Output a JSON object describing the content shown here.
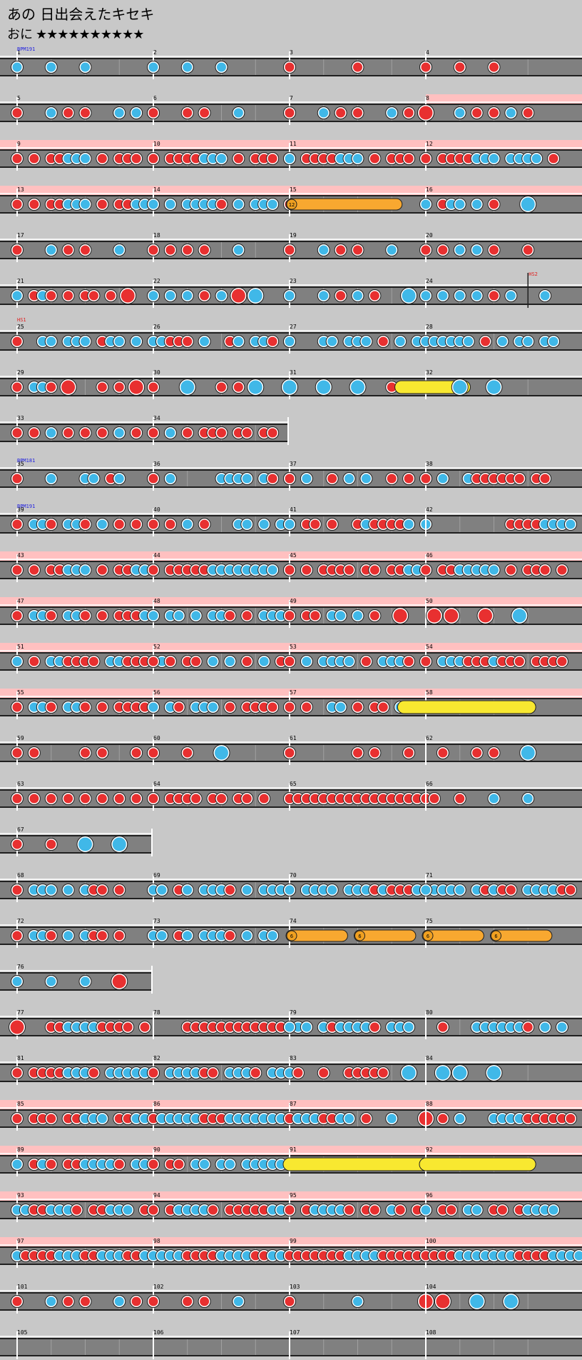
{
  "song": {
    "title": "あの 日出会えたキセキ",
    "course_label": "おに",
    "stars": "★★★★★★★★★★",
    "star_count": 10
  },
  "colors": {
    "background": "#c8c8c8",
    "lane": "#808080",
    "gogo_band": "#ffc0c0",
    "don": "#e83030",
    "ka": "#40b8e8",
    "balloon": "#f8a830",
    "drumroll": "#f8e830",
    "bpm_text": "#2020e0",
    "hs_text": "#e02020"
  },
  "event_labels": {
    "bpm_first": "BPM191",
    "bpm_35": "BPM181",
    "bpm_39": "BPM191",
    "hs_24": "HS2",
    "hs_25": "HS1"
  },
  "balloon_labels": {
    "m15": "12",
    "m74": "6",
    "m74b": "6",
    "m75": "6",
    "m75b": "6"
  },
  "measures": [
    {
      "n": "1",
      "row": 0,
      "col": 0,
      "notes": "k...k...k.......",
      "bpm": "bpm_first"
    },
    {
      "n": "2",
      "row": 0,
      "col": 1,
      "notes": "k...k...k......."
    },
    {
      "n": "3",
      "row": 0,
      "col": 2,
      "notes": "d.......d.......d"
    },
    {
      "n": "4",
      "row": 0,
      "col": 3,
      "notes": "d...d...d......."
    },
    {
      "n": "5",
      "row": 1,
      "col": 0,
      "notes": "d...k.d.d...k.k.d"
    },
    {
      "n": "6",
      "row": 1,
      "col": 1,
      "notes": "d...d.d...k....."
    },
    {
      "n": "7",
      "row": 1,
      "col": 2,
      "notes": "d...k.d.d...k.d.K"
    },
    {
      "n": "8",
      "row": 1,
      "col": 3,
      "notes": "D...k.d.d.k.d...",
      "gogo": true
    },
    {
      "n": "9",
      "row": 2,
      "col": 0,
      "notes": "d.d.ddkkk.d.ddd.d",
      "gogo": true
    },
    {
      "n": "10",
      "row": 2,
      "col": 1,
      "notes": "d.ddddkkk.d.ddd.d",
      "gogo": true
    },
    {
      "n": "11",
      "row": 2,
      "col": 2,
      "notes": "k.ddddkkk.d.ddd.d",
      "gogo": true
    },
    {
      "n": "12",
      "row": 2,
      "col": 3,
      "notes": "d.ddddkkk.kkkk.d.",
      "gogo": true
    },
    {
      "n": "13",
      "row": 3,
      "col": 0,
      "notes": "d.d.ddkkk.d.ddkkd",
      "gogo": true
    },
    {
      "n": "14",
      "row": 3,
      "col": 1,
      "notes": "k.k.kkkkd.k.kkk.d",
      "gogo": true
    },
    {
      "n": "15",
      "row": 3,
      "col": 2,
      "notes": "",
      "gogo": true,
      "balloon": {
        "from": 0,
        "to": 0.8,
        "label": "m15",
        "type": "balloon"
      }
    },
    {
      "n": "16",
      "row": 3,
      "col": 3,
      "notes": "k.dkk.k.d...K...",
      "gogo": true
    },
    {
      "n": "17",
      "row": 4,
      "col": 0,
      "notes": "d...k.d.d...k..."
    },
    {
      "n": "18",
      "row": 4,
      "col": 1,
      "notes": "d.d.d.d...k....."
    },
    {
      "n": "19",
      "row": 4,
      "col": 2,
      "notes": "d...k.d.d...k..."
    },
    {
      "n": "20",
      "row": 4,
      "col": 3,
      "notes": "d.d.k.k.d...d..."
    },
    {
      "n": "21",
      "row": 5,
      "col": 0,
      "notes": "k.dkd.d.dd.d.D.."
    },
    {
      "n": "22",
      "row": 5,
      "col": 1,
      "notes": "k.k.k.d.k.D.K..."
    },
    {
      "n": "23",
      "row": 5,
      "col": 2,
      "notes": "k...k.d.k.d...K."
    },
    {
      "n": "24",
      "row": 5,
      "col": 3,
      "notes": "k.k.k.k.d.k...k.",
      "hs": "hs_24"
    },
    {
      "n": "25",
      "row": 6,
      "col": 0,
      "notes": "d..kk.kkk.dkk.k.",
      "hs": "hs_25"
    },
    {
      "n": "26",
      "row": 6,
      "col": 1,
      "notes": "kkddd.k..dk.kkd.d"
    },
    {
      "n": "27",
      "row": 6,
      "col": 2,
      "notes": "k...kk.kkk.d.k.k"
    },
    {
      "n": "28",
      "row": 6,
      "col": 3,
      "notes": "kkkkkk.d.k.kk.kk"
    },
    {
      "n": "29",
      "row": 7,
      "col": 0,
      "notes": "d.kkd.D...d.d.D."
    },
    {
      "n": "30",
      "row": 7,
      "col": 1,
      "notes": "d...K...d.d.K..."
    },
    {
      "n": "31",
      "row": 7,
      "col": 2,
      "notes": "K...K...K...d.d."
    },
    {
      "n": "32",
      "row": 7,
      "col": 3,
      "notes": "....K...K.......",
      "roll": {
        "from": -0.18,
        "to": 0.28
      }
    },
    {
      "n": "33",
      "row": 8,
      "col": 0,
      "notes": "d.d.k.d.d.d.k.d."
    },
    {
      "n": "34",
      "row": 8,
      "col": 1,
      "notes": "d.k.d.ddd.dd.dd."
    },
    {
      "n": "35",
      "row": 9,
      "col": 0,
      "notes": "d...k...kk.dk...d",
      "bpm": "bpm_35"
    },
    {
      "n": "36",
      "row": 9,
      "col": 1,
      "notes": "d.k.....kkkk.kd.k"
    },
    {
      "n": "37",
      "row": 9,
      "col": 2,
      "notes": "d.k..d.k.k..d.d.d"
    },
    {
      "n": "38",
      "row": 9,
      "col": 3,
      "notes": "d.k..kdddddd.dd.."
    },
    {
      "n": "39",
      "row": 10,
      "col": 0,
      "notes": "d.kkd.kkd.k.d.d.",
      "bpm": "bpm_39"
    },
    {
      "n": "40",
      "row": 10,
      "col": 1,
      "notes": "d.d.k.d...kk.k.kd"
    },
    {
      "n": "41",
      "row": 10,
      "col": 2,
      "notes": "k.dd.d..dkddddk.k"
    },
    {
      "n": "42",
      "row": 10,
      "col": 3,
      "notes": "..........ddddkkkk"
    },
    {
      "n": "43",
      "row": 11,
      "col": 0,
      "notes": "d.d.ddkkk.d.ddkkd",
      "gogo": true
    },
    {
      "n": "44",
      "row": 11,
      "col": 1,
      "notes": "d.dddddkkkkkkkk.d",
      "gogo": true
    },
    {
      "n": "45",
      "row": 11,
      "col": 2,
      "notes": "d.d.dddd.dd.ddkkk",
      "gogo": true
    },
    {
      "n": "46",
      "row": 11,
      "col": 3,
      "notes": "d.ddkkkkk.d.ddd.d",
      "gogo": true
    },
    {
      "n": "47",
      "row": 12,
      "col": 0,
      "notes": "d.kkd.kkd.d.dddkk",
      "gogo": true
    },
    {
      "n": "48",
      "row": 12,
      "col": 1,
      "notes": "k.kk.k.kkd.d.kkkk",
      "gogo": true
    },
    {
      "n": "49",
      "row": 12,
      "col": 2,
      "notes": "d.dd.kk.k.d..D..",
      "gogo": true
    },
    {
      "n": "50",
      "row": 12,
      "col": 3,
      "notes": ".D.D...D...K....",
      "gogo": true
    },
    {
      "n": "51",
      "row": 13,
      "col": 0,
      "notes": "k.d.kkdddd.kkddd.k",
      "gogo": true
    },
    {
      "n": "52",
      "row": 13,
      "col": 1,
      "notes": "d.d.dd.k.k.d.k.d",
      "gogo": true
    },
    {
      "n": "53",
      "row": 13,
      "col": 2,
      "notes": "d.k.kkkk.d.kkkd.d",
      "gogo": true
    },
    {
      "n": "54",
      "row": 13,
      "col": 3,
      "notes": "d.kkkdddkddd.dddd.",
      "gogo": true
    },
    {
      "n": "55",
      "row": 14,
      "col": 0,
      "notes": "d.kkd.kkd.d.dddd.",
      "gogo": true
    },
    {
      "n": "56",
      "row": 14,
      "col": 1,
      "notes": "k.kd.kkk.d.dddd.",
      "gogo": true
    },
    {
      "n": "57",
      "row": 14,
      "col": 2,
      "notes": "d.d..kk.d.dd.k...",
      "gogo": true,
      "roll_next": true
    },
    {
      "n": "58",
      "row": 14,
      "col": 3,
      "notes": "",
      "gogo": true,
      "roll": {
        "from": -0.16,
        "to": 0.76
      }
    },
    {
      "n": "59",
      "row": 15,
      "col": 0,
      "notes": "d.d.....d.d...d."
    },
    {
      "n": "60",
      "row": 15,
      "col": 1,
      "notes": "d...d...K......."
    },
    {
      "n": "61",
      "row": 15,
      "col": 2,
      "notes": "d.......d.d...d."
    },
    {
      "n": "62",
      "row": 15,
      "col": 3,
      "notes": "..d...d.d...K..."
    },
    {
      "n": "63",
      "row": 16,
      "col": 0,
      "notes": "d.d.d.d.d.d.d.d."
    },
    {
      "n": "64",
      "row": 16,
      "col": 1,
      "notes": "d.dddd.dd.dd.d.."
    },
    {
      "n": "65",
      "row": 16,
      "col": 2,
      "notes": "dddddddddddddddddd"
    },
    {
      "n": "66",
      "row": 16,
      "col": 3,
      "notes": "....d...k...k..."
    },
    {
      "n": "67",
      "row": 17,
      "col": 0,
      "notes": "d...d...K...K..."
    },
    {
      "n": "68",
      "row": 18,
      "col": 0,
      "notes": "d.kkk.k.kdd.d..."
    },
    {
      "n": "69",
      "row": 18,
      "col": 1,
      "notes": "kk.dk.kkkd.k.kkkd"
    },
    {
      "n": "70",
      "row": 18,
      "col": 2,
      "notes": "k.kkkk.kkkdkdddkkkk"
    },
    {
      "n": "71",
      "row": 18,
      "col": 3,
      "notes": "k.kkk.kdkdd.kkkkdd"
    },
    {
      "n": "72",
      "row": 19,
      "col": 0,
      "notes": "d.kkd.k.kdd.d..."
    },
    {
      "n": "73",
      "row": 19,
      "col": 1,
      "notes": "kk.dk.kkkd.k.kk"
    },
    {
      "n": "74",
      "row": 19,
      "col": 2,
      "notes": "",
      "balloons": [
        {
          "from": 0,
          "to": 0.4,
          "label": "m74"
        },
        {
          "from": 0.5,
          "to": 0.9,
          "label": "m74b"
        }
      ]
    },
    {
      "n": "75",
      "row": 19,
      "col": 3,
      "notes": "",
      "balloons": [
        {
          "from": 0,
          "to": 0.4,
          "label": "m75"
        },
        {
          "from": 0.5,
          "to": 0.9,
          "label": "m75b"
        }
      ]
    },
    {
      "n": "76",
      "row": 20,
      "col": 0,
      "notes": "k...k...k...D..."
    },
    {
      "n": "77",
      "row": 21,
      "col": 0,
      "notes": "D...ddkkkkdddd.d"
    },
    {
      "n": "78",
      "row": 21,
      "col": 1,
      "notes": "....dddddddddddddkk"
    },
    {
      "n": "79",
      "row": 21,
      "col": 2,
      "notes": "k...kdkkkkd.kkk...d"
    },
    {
      "n": "80",
      "row": 21,
      "col": 3,
      "notes": "..d...kkkkkkd.k.k"
    },
    {
      "n": "81",
      "row": 22,
      "col": 0,
      "notes": "d.ddddkkkd.kkkkkk"
    },
    {
      "n": "82",
      "row": 22,
      "col": 1,
      "notes": "d.kkkkdd.kkkd.kk"
    },
    {
      "n": "83",
      "row": 22,
      "col": 2,
      "notes": "kd..d..ddddd..K."
    },
    {
      "n": "84",
      "row": 22,
      "col": 3,
      "notes": "..K.K...K......."
    },
    {
      "n": "85",
      "row": 23,
      "col": 0,
      "notes": "d.ddd.ddkkk.ddkkd",
      "gogo": true
    },
    {
      "n": "86",
      "row": 23,
      "col": 1,
      "notes": "dkkkkkdddkkkkkkkd",
      "gogo": true
    },
    {
      "n": "87",
      "row": 23,
      "col": 2,
      "notes": "dkkkddkk.d..k...D",
      "gogo": true
    },
    {
      "n": "88",
      "row": 23,
      "col": 3,
      "notes": "..d.k...kkkkdddddd",
      "gogo": true
    },
    {
      "n": "89",
      "row": 24,
      "col": 0,
      "notes": "k.dkd.ddkkkkd.kkd",
      "gogo": true
    },
    {
      "n": "90",
      "row": 24,
      "col": 1,
      "notes": "d.dd.kk.kk.kkkkk",
      "gogo": true,
      "roll_next": true
    },
    {
      "n": "91",
      "row": 24,
      "col": 2,
      "notes": "",
      "gogo": true,
      "roll": {
        "from": 0,
        "to": 1.0
      }
    },
    {
      "n": "92",
      "row": 24,
      "col": 3,
      "notes": "",
      "gogo": true,
      "roll": {
        "from": 0,
        "to": 0.76
      }
    },
    {
      "n": "93",
      "row": 25,
      "col": 0,
      "notes": "kkddkkkd.ddkkk.dk",
      "gogo": true
    },
    {
      "n": "94",
      "row": 25,
      "col": 1,
      "notes": "d.dkkkkd.dddddkk",
      "gogo": true
    },
    {
      "n": "95",
      "row": 25,
      "col": 2,
      "notes": "d.dkkkkd.dd.kd.dk",
      "gogo": true
    },
    {
      "n": "96",
      "row": 25,
      "col": 3,
      "notes": "k.dd.kk.dd.dkkkk",
      "gogo": true
    },
    {
      "n": "97",
      "row": 26,
      "col": 0,
      "notes": "kddddkkkddkkkddkkk",
      "gogo": true
    },
    {
      "n": "98",
      "row": 26,
      "col": 1,
      "notes": "kkkkddddkkkkddkkkk",
      "gogo": true
    },
    {
      "n": "99",
      "row": 26,
      "col": 2,
      "notes": "dddddddkkkkddddddd",
      "gogo": true
    },
    {
      "n": "100",
      "row": 26,
      "col": 3,
      "notes": "ddddkkkkkkkddddkkkkk",
      "gogo": true
    },
    {
      "n": "101",
      "row": 27,
      "col": 0,
      "notes": "d...k.d.d...k.d."
    },
    {
      "n": "102",
      "row": 27,
      "col": 1,
      "notes": "d...d.d...k....."
    },
    {
      "n": "103",
      "row": 27,
      "col": 2,
      "notes": "d.......k.......D"
    },
    {
      "n": "104",
      "row": 27,
      "col": 3,
      "notes": "..D...K...K......"
    },
    {
      "n": "105",
      "row": 28,
      "col": 0,
      "notes": ""
    },
    {
      "n": "106",
      "row": 28,
      "col": 1,
      "notes": ""
    },
    {
      "n": "107",
      "row": 28,
      "col": 2,
      "notes": ""
    },
    {
      "n": "108",
      "row": 28,
      "col": 3,
      "notes": ""
    }
  ]
}
